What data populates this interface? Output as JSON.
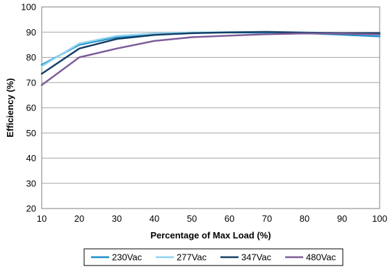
{
  "chart_data": {
    "type": "line",
    "xlabel": "Percentage of Max Load (%)",
    "ylabel": "Efficiency (%)",
    "xlim": [
      10,
      100
    ],
    "ylim": [
      20,
      100
    ],
    "xticks": [
      10,
      20,
      30,
      40,
      50,
      60,
      70,
      80,
      90,
      100
    ],
    "yticks": [
      20,
      30,
      40,
      50,
      60,
      70,
      80,
      90,
      100
    ],
    "grid": "horizontal",
    "legend": "bottom",
    "x": [
      10,
      20,
      30,
      40,
      50,
      60,
      70,
      80,
      90,
      100
    ],
    "series": [
      {
        "name": "230Vac",
        "color": "#1B8DC9",
        "values": [
          77,
          85,
          88,
          89.3,
          89.8,
          89.9,
          89.8,
          89.6,
          89,
          88.3
        ]
      },
      {
        "name": "277Vac",
        "color": "#8FD3F0",
        "values": [
          76.5,
          85.5,
          88.5,
          89.5,
          89.9,
          90,
          90,
          89.9,
          89.5,
          88.9
        ]
      },
      {
        "name": "347Vac",
        "color": "#123E65",
        "values": [
          73.5,
          83.5,
          87.3,
          88.9,
          89.6,
          89.9,
          90.1,
          89.8,
          89.6,
          89.6
        ]
      },
      {
        "name": "480Vac",
        "color": "#7D5B98",
        "values": [
          69,
          80,
          83.5,
          86.5,
          88,
          88.6,
          89.2,
          89.5,
          89.4,
          89.1
        ]
      }
    ]
  }
}
